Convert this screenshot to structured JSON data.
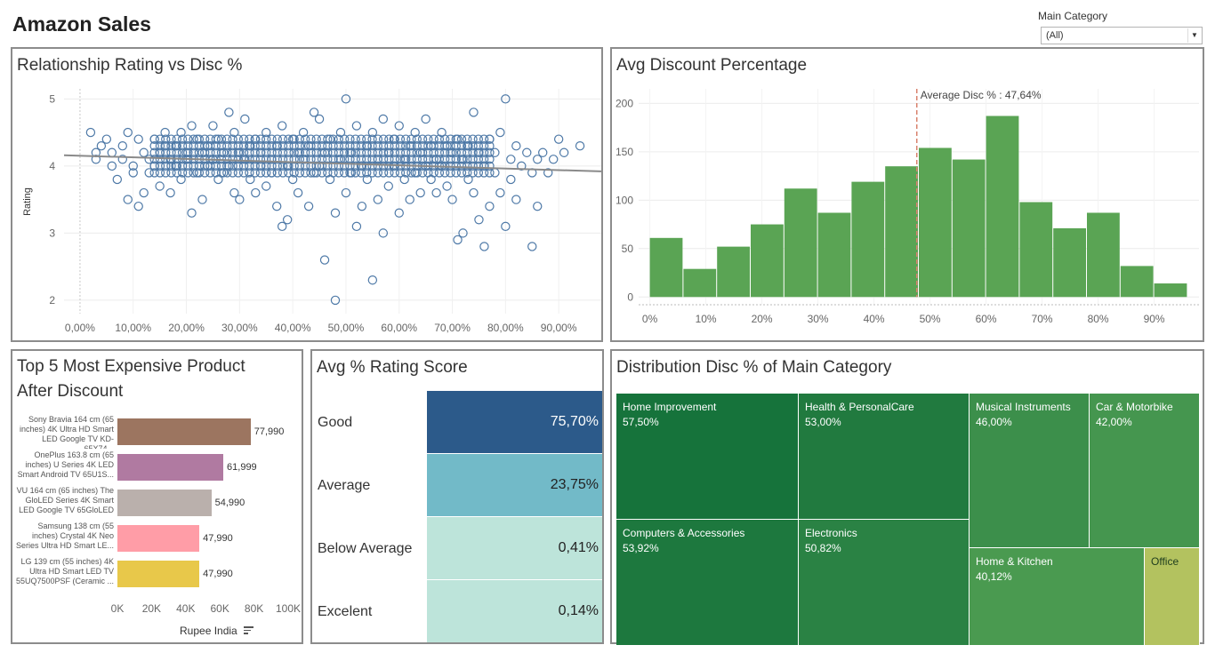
{
  "page": {
    "title": "Amazon Sales"
  },
  "filter": {
    "label": "Main Category",
    "value": "(All)"
  },
  "scatter": {
    "title": "Relationship Rating vs Disc %",
    "ylabel": "Rating",
    "chart_data": {
      "type": "scatter",
      "title": "Relationship Rating vs Disc %",
      "xlabel": "",
      "ylabel": "Rating",
      "x_ticks": [
        "0,00%",
        "10,00%",
        "20,00%",
        "30,00%",
        "40,00%",
        "50,00%",
        "60,00%",
        "70,00%",
        "80,00%",
        "90,00%"
      ],
      "y_ticks": [
        "2",
        "3",
        "4",
        "5"
      ],
      "xlim": [
        -0.03,
        0.98
      ],
      "ylim": [
        1.8,
        5.15
      ],
      "trend_line": [
        [
          -0.03,
          4.16
        ],
        [
          0.98,
          3.92
        ]
      ],
      "grid": true,
      "points": [
        [
          0.02,
          4.5
        ],
        [
          0.03,
          4.1
        ],
        [
          0.03,
          4.2
        ],
        [
          0.04,
          4.3
        ],
        [
          0.05,
          4.4
        ],
        [
          0.06,
          4.0
        ],
        [
          0.06,
          4.2
        ],
        [
          0.07,
          3.8
        ],
        [
          0.08,
          4.3
        ],
        [
          0.08,
          4.1
        ],
        [
          0.09,
          3.5
        ],
        [
          0.09,
          4.5
        ],
        [
          0.1,
          4.0
        ],
        [
          0.1,
          3.9
        ],
        [
          0.11,
          3.4
        ],
        [
          0.11,
          4.4
        ],
        [
          0.12,
          4.2
        ],
        [
          0.12,
          3.6
        ],
        [
          0.13,
          4.1
        ],
        [
          0.13,
          3.9
        ],
        [
          0.14,
          4.4
        ],
        [
          0.14,
          4.0
        ],
        [
          0.15,
          4.2
        ],
        [
          0.15,
          3.7
        ],
        [
          0.16,
          4.5
        ],
        [
          0.16,
          4.3
        ],
        [
          0.17,
          4.1
        ],
        [
          0.17,
          3.6
        ],
        [
          0.18,
          4.0
        ],
        [
          0.18,
          4.3
        ],
        [
          0.19,
          4.5
        ],
        [
          0.19,
          3.8
        ],
        [
          0.2,
          4.2
        ],
        [
          0.2,
          4.1
        ],
        [
          0.21,
          3.3
        ],
        [
          0.21,
          4.6
        ],
        [
          0.22,
          3.9
        ],
        [
          0.22,
          4.4
        ],
        [
          0.23,
          4.2
        ],
        [
          0.23,
          3.5
        ],
        [
          0.24,
          4.0
        ],
        [
          0.24,
          4.3
        ],
        [
          0.25,
          4.6
        ],
        [
          0.25,
          4.1
        ],
        [
          0.26,
          3.8
        ],
        [
          0.26,
          4.4
        ],
        [
          0.27,
          4.2
        ],
        [
          0.27,
          3.9
        ],
        [
          0.28,
          4.8
        ],
        [
          0.28,
          4.0
        ],
        [
          0.29,
          3.6
        ],
        [
          0.29,
          4.5
        ],
        [
          0.3,
          4.2
        ],
        [
          0.3,
          3.5
        ],
        [
          0.31,
          4.7
        ],
        [
          0.31,
          4.1
        ],
        [
          0.32,
          3.8
        ],
        [
          0.32,
          4.3
        ],
        [
          0.33,
          4.4
        ],
        [
          0.33,
          3.6
        ],
        [
          0.34,
          4.0
        ],
        [
          0.34,
          4.2
        ],
        [
          0.35,
          4.5
        ],
        [
          0.35,
          3.7
        ],
        [
          0.36,
          4.1
        ],
        [
          0.36,
          3.9
        ],
        [
          0.37,
          4.3
        ],
        [
          0.37,
          3.4
        ],
        [
          0.38,
          3.1
        ],
        [
          0.38,
          4.6
        ],
        [
          0.39,
          4.0
        ],
        [
          0.39,
          3.2
        ],
        [
          0.4,
          4.4
        ],
        [
          0.4,
          3.8
        ],
        [
          0.41,
          4.2
        ],
        [
          0.41,
          3.6
        ],
        [
          0.42,
          4.1
        ],
        [
          0.42,
          4.5
        ],
        [
          0.43,
          3.4
        ],
        [
          0.43,
          4.3
        ],
        [
          0.44,
          4.8
        ],
        [
          0.44,
          3.9
        ],
        [
          0.45,
          4.0
        ],
        [
          0.45,
          4.7
        ],
        [
          0.46,
          4.2
        ],
        [
          0.46,
          2.6
        ],
        [
          0.47,
          3.8
        ],
        [
          0.47,
          4.4
        ],
        [
          0.48,
          2.0
        ],
        [
          0.48,
          3.3
        ],
        [
          0.49,
          4.1
        ],
        [
          0.49,
          4.5
        ],
        [
          0.5,
          5.0
        ],
        [
          0.5,
          3.6
        ],
        [
          0.51,
          4.2
        ],
        [
          0.51,
          3.9
        ],
        [
          0.52,
          3.1
        ],
        [
          0.52,
          4.6
        ],
        [
          0.53,
          4.0
        ],
        [
          0.53,
          3.4
        ],
        [
          0.54,
          4.3
        ],
        [
          0.54,
          3.8
        ],
        [
          0.55,
          4.5
        ],
        [
          0.55,
          2.3
        ],
        [
          0.56,
          4.1
        ],
        [
          0.56,
          3.5
        ],
        [
          0.57,
          3.0
        ],
        [
          0.57,
          4.7
        ],
        [
          0.58,
          4.2
        ],
        [
          0.58,
          3.7
        ],
        [
          0.59,
          4.0
        ],
        [
          0.59,
          4.4
        ],
        [
          0.6,
          3.3
        ],
        [
          0.6,
          4.6
        ],
        [
          0.61,
          4.1
        ],
        [
          0.61,
          3.8
        ],
        [
          0.62,
          4.3
        ],
        [
          0.62,
          3.5
        ],
        [
          0.63,
          3.9
        ],
        [
          0.63,
          4.5
        ],
        [
          0.64,
          4.2
        ],
        [
          0.64,
          3.6
        ],
        [
          0.65,
          4.7
        ],
        [
          0.65,
          4.0
        ],
        [
          0.66,
          3.8
        ],
        [
          0.66,
          4.3
        ],
        [
          0.67,
          4.1
        ],
        [
          0.67,
          3.6
        ],
        [
          0.68,
          4.5
        ],
        [
          0.68,
          4.0
        ],
        [
          0.69,
          3.7
        ],
        [
          0.69,
          4.3
        ],
        [
          0.7,
          4.2
        ],
        [
          0.7,
          3.5
        ],
        [
          0.71,
          2.9
        ],
        [
          0.71,
          4.4
        ],
        [
          0.72,
          3.0
        ],
        [
          0.72,
          4.1
        ],
        [
          0.73,
          3.8
        ],
        [
          0.73,
          4.3
        ],
        [
          0.74,
          4.8
        ],
        [
          0.74,
          3.6
        ],
        [
          0.75,
          3.2
        ],
        [
          0.75,
          4.2
        ],
        [
          0.76,
          2.8
        ],
        [
          0.76,
          4.0
        ],
        [
          0.77,
          3.4
        ],
        [
          0.77,
          4.4
        ],
        [
          0.78,
          3.9
        ],
        [
          0.78,
          4.2
        ],
        [
          0.79,
          3.6
        ],
        [
          0.79,
          4.5
        ],
        [
          0.8,
          5.0
        ],
        [
          0.8,
          3.1
        ],
        [
          0.81,
          4.1
        ],
        [
          0.81,
          3.8
        ],
        [
          0.82,
          4.3
        ],
        [
          0.82,
          3.5
        ],
        [
          0.83,
          4.0
        ],
        [
          0.84,
          4.2
        ],
        [
          0.85,
          3.9
        ],
        [
          0.85,
          2.8
        ],
        [
          0.86,
          4.1
        ],
        [
          0.86,
          3.4
        ],
        [
          0.87,
          4.2
        ],
        [
          0.88,
          3.9
        ],
        [
          0.89,
          4.1
        ],
        [
          0.9,
          4.4
        ],
        [
          0.91,
          4.2
        ],
        [
          0.94,
          4.3
        ]
      ]
    }
  },
  "histogram": {
    "title": "Avg Discount Percentage",
    "avg_label": "Average Disc % : 47,64%",
    "chart_data": {
      "type": "bar",
      "title": "Avg Discount Percentage",
      "xlabel": "",
      "ylabel": "",
      "bin_starts": [
        0,
        6,
        12,
        18,
        24,
        30,
        36,
        42,
        48,
        54,
        60,
        66,
        72,
        78,
        84,
        90
      ],
      "bin_width": 6,
      "values": [
        61,
        29,
        52,
        75,
        112,
        87,
        119,
        135,
        154,
        142,
        187,
        98,
        71,
        87,
        32,
        14
      ],
      "x_ticks": [
        "0%",
        "10%",
        "20%",
        "30%",
        "40%",
        "50%",
        "60%",
        "70%",
        "80%",
        "90%"
      ],
      "y_ticks": [
        "0",
        "50",
        "100",
        "150",
        "200"
      ],
      "xlim": [
        -2,
        98
      ],
      "ylim": [
        -8,
        215
      ],
      "reference_line": 47.64,
      "color": "#5aa454"
    }
  },
  "top5": {
    "title_line1": "Top 5 Most Expensive Product",
    "title_line2": "After Discount",
    "axis_title": "Rupee India",
    "chart_data": {
      "type": "bar",
      "title": "Top 5 Most Expensive Product After Discount",
      "orientation": "horizontal",
      "xlabel": "Rupee India",
      "xlim": [
        0,
        100000
      ],
      "x_ticks": [
        "0K",
        "20K",
        "40K",
        "60K",
        "80K",
        "100K"
      ],
      "categories": [
        "Sony Bravia 164 cm (65 inches) 4K Ultra HD Smart LED Google TV KD-65X74...",
        "OnePlus 163.8 cm (65 inches) U Series 4K LED Smart Android TV 65U1S...",
        "VU 164 cm (65 inches) The GloLED Series 4K Smart LED Google TV 65GloLED ...",
        "Samsung 138 cm (55 inches) Crystal 4K Neo Series Ultra HD Smart LE...",
        "LG 139 cm (55 inches) 4K Ultra HD Smart LED TV 55UQ7500PSF (Ceramic ..."
      ],
      "values": [
        77990,
        61999,
        54990,
        47990,
        47990
      ],
      "value_labels": [
        "77,990",
        "61,999",
        "54,990",
        "47,990",
        "47,990"
      ],
      "colors": [
        "#9c7560",
        "#b07aa1",
        "#bab0ac",
        "#ff9da7",
        "#e8c84a"
      ]
    }
  },
  "rating": {
    "title": "Avg % Rating Score",
    "chart_data": {
      "type": "table",
      "title": "Avg % Rating Score",
      "rows": [
        {
          "label": "Good",
          "value": "75,70%",
          "color": "#2c5a8a",
          "text_color": "#ffffff"
        },
        {
          "label": "Average",
          "value": "23,75%",
          "color": "#72bac8",
          "text_color": "#222222"
        },
        {
          "label": "Below Average",
          "value": "0,41%",
          "color": "#bde4da",
          "text_color": "#222222"
        },
        {
          "label": "Excelent",
          "value": "0,14%",
          "color": "#bde4da",
          "text_color": "#222222"
        }
      ]
    }
  },
  "treemap": {
    "title": "Distribution Disc % of Main Category",
    "chart_data": {
      "type": "heatmap",
      "title": "Distribution Disc % of Main Category",
      "cells": [
        {
          "name": "Home Improvement",
          "value": "57,50%",
          "color": "#16733b"
        },
        {
          "name": "Health & PersonalCare",
          "value": "53,00%",
          "color": "#217a3f"
        },
        {
          "name": "Computers & Accessories",
          "value": "53,92%",
          "color": "#1d783e"
        },
        {
          "name": "Electronics",
          "value": "50,82%",
          "color": "#2a8244"
        },
        {
          "name": "Musical Instruments",
          "value": "46,00%",
          "color": "#3c8f4b"
        },
        {
          "name": "Car & Motorbike",
          "value": "42,00%",
          "color": "#45964f"
        },
        {
          "name": "Home & Kitchen",
          "value": "40,12%",
          "color": "#4a9a50"
        },
        {
          "name": "Office",
          "value": "",
          "color": "#b3c25f"
        }
      ]
    }
  }
}
